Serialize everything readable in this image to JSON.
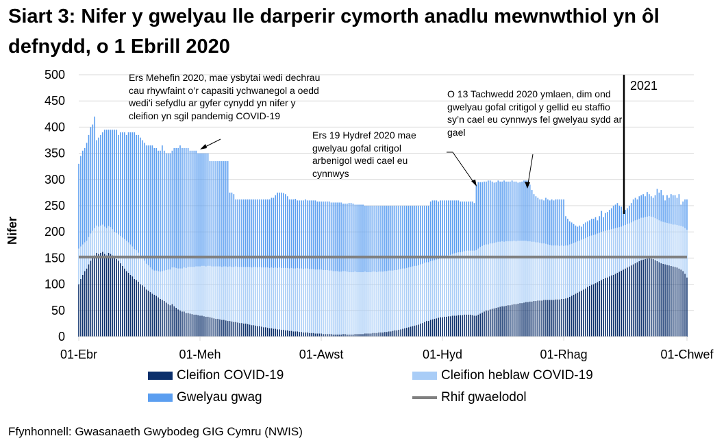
{
  "title": "Siart 3: Nifer y gwelyau lle darperir cymorth anadlu mewnwthiol yn ôl defnydd, o 1 Ebrill 2020",
  "source": "Ffynhonnell: Gwasanaeth Gwybodeg GIG Cymru (NWIS)",
  "chart_data": {
    "type": "bar",
    "stacked": true,
    "title": "Siart 3: Nifer y gwelyau lle darperir cymorth anadlu mewnwthiol yn ôl defnydd, o 1 Ebrill 2020",
    "xlabel": "",
    "ylabel": "Nifer",
    "ylim": [
      0,
      500
    ],
    "yticks": [
      0,
      50,
      100,
      150,
      200,
      250,
      300,
      350,
      400,
      450,
      500
    ],
    "xticks": [
      "01-Ebr",
      "01-Meh",
      "01-Awst",
      "01-Hyd",
      "01-Rhag",
      "01-Chwef"
    ],
    "grid": true,
    "legend": "bottom",
    "colors": {
      "covid": "#0b2f6b",
      "non_covid": "#a9cdf7",
      "empty": "#5b9ef0",
      "baseline": "#808080"
    },
    "series": [
      {
        "name": "Cleifion COVID-19",
        "values": [
          100,
          110,
          118,
          125,
          130,
          138,
          145,
          150,
          155,
          160,
          158,
          160,
          162,
          158,
          155,
          160,
          158,
          155,
          150,
          148,
          145,
          140,
          135,
          130,
          125,
          122,
          118,
          115,
          110,
          108,
          105,
          100,
          98,
          95,
          90,
          88,
          85,
          82,
          80,
          78,
          75,
          72,
          70,
          68,
          65,
          62,
          60,
          62,
          58,
          55,
          52,
          50,
          48,
          48,
          45,
          45,
          44,
          43,
          42,
          42,
          41,
          40,
          40,
          39,
          38,
          38,
          37,
          36,
          35,
          34,
          34,
          33,
          32,
          32,
          31,
          30,
          30,
          29,
          28,
          28,
          27,
          26,
          26,
          25,
          25,
          24,
          23,
          22,
          22,
          21,
          20,
          20,
          19,
          18,
          18,
          17,
          16,
          16,
          15,
          15,
          14,
          14,
          13,
          13,
          12,
          12,
          11,
          11,
          10,
          10,
          10,
          9,
          9,
          8,
          8,
          8,
          7,
          7,
          7,
          6,
          6,
          6,
          6,
          5,
          5,
          5,
          5,
          5,
          4,
          4,
          4,
          4,
          4,
          5,
          5,
          4,
          4,
          4,
          4,
          5,
          5,
          5,
          5,
          5,
          6,
          6,
          6,
          6,
          7,
          7,
          7,
          8,
          8,
          8,
          9,
          9,
          10,
          10,
          11,
          12,
          12,
          13,
          14,
          15,
          16,
          17,
          18,
          19,
          20,
          21,
          22,
          23,
          25,
          26,
          28,
          30,
          30,
          32,
          33,
          34,
          35,
          36,
          37,
          37,
          38,
          38,
          39,
          39,
          40,
          40,
          40,
          41,
          41,
          41,
          42,
          42,
          42,
          42,
          41,
          40,
          40,
          42,
          44,
          46,
          48,
          50,
          50,
          52,
          53,
          54,
          55,
          56,
          57,
          58,
          58,
          59,
          60,
          60,
          61,
          62,
          62,
          63,
          64,
          64,
          65,
          66,
          66,
          67,
          67,
          68,
          68,
          69,
          69,
          69,
          70,
          70,
          70,
          70,
          70,
          70,
          71,
          71,
          71,
          72,
          72,
          73,
          74,
          76,
          78,
          80,
          82,
          84,
          86,
          88,
          90,
          92,
          95,
          97,
          99,
          100,
          102,
          104,
          106,
          108,
          110,
          112,
          113,
          115,
          117,
          118,
          120,
          122,
          124,
          126,
          128,
          130,
          132,
          134,
          136,
          138,
          140,
          142,
          144,
          146,
          147,
          148,
          149,
          150,
          149,
          148,
          146,
          144,
          142,
          140,
          139,
          138,
          137,
          136,
          135,
          134,
          133,
          132,
          130,
          128,
          125,
          120,
          113
        ]
      },
      {
        "name": "Cleifion heblaw COVID-19",
        "values": [
          68,
          62,
          58,
          55,
          53,
          52,
          52,
          52,
          52,
          52,
          52,
          52,
          52,
          52,
          52,
          51,
          51,
          50,
          50,
          50,
          50,
          52,
          54,
          56,
          58,
          58,
          58,
          57,
          57,
          57,
          55,
          54,
          52,
          50,
          49,
          48,
          47,
          46,
          46,
          48,
          50,
          52,
          55,
          58,
          62,
          66,
          68,
          70,
          74,
          76,
          78,
          80,
          82,
          84,
          86,
          88,
          89,
          90,
          91,
          92,
          93,
          94,
          95,
          96,
          96,
          97,
          98,
          98,
          99,
          100,
          100,
          101,
          101,
          102,
          103,
          103,
          104,
          104,
          105,
          106,
          106,
          107,
          107,
          108,
          108,
          109,
          110,
          110,
          111,
          112,
          112,
          113,
          113,
          114,
          114,
          115,
          115,
          116,
          116,
          117,
          117,
          118,
          118,
          118,
          119,
          119,
          119,
          120,
          120,
          120,
          121,
          121,
          121,
          121,
          122,
          122,
          122,
          122,
          122,
          122,
          122,
          122,
          122,
          122,
          122,
          122,
          121,
          121,
          121,
          121,
          121,
          120,
          120,
          120,
          120,
          120,
          119,
          119,
          119,
          119,
          118,
          118,
          118,
          118,
          118,
          117,
          117,
          117,
          117,
          117,
          116,
          116,
          116,
          116,
          116,
          116,
          116,
          116,
          115,
          115,
          115,
          115,
          115,
          115,
          114,
          114,
          114,
          114,
          114,
          114,
          113,
          113,
          113,
          113,
          113,
          112,
          112,
          112,
          112,
          112,
          112,
          112,
          112,
          113,
          114,
          115,
          116,
          117,
          118,
          119,
          120,
          120,
          120,
          121,
          121,
          122,
          122,
          122,
          123,
          124,
          125,
          126,
          127,
          127,
          127,
          126,
          126,
          126,
          125,
          125,
          125,
          125,
          124,
          124,
          123,
          123,
          122,
          122,
          121,
          121,
          120,
          120,
          119,
          119,
          118,
          117,
          116,
          115,
          114,
          113,
          112,
          111,
          110,
          109,
          108,
          107,
          106,
          105,
          104,
          104,
          103,
          103,
          102,
          102,
          101,
          101,
          100,
          100,
          99,
          99,
          98,
          98,
          97,
          97,
          96,
          96,
          95,
          95,
          94,
          94,
          93,
          93,
          92,
          92,
          91,
          90,
          90,
          89,
          88,
          88,
          87,
          86,
          85,
          84,
          84,
          83,
          83,
          82,
          82,
          82,
          82,
          81,
          81,
          81,
          80,
          80,
          80,
          80,
          80,
          80,
          80,
          80,
          80,
          80,
          80,
          80,
          80,
          80,
          80,
          80,
          81,
          81,
          82,
          83,
          85,
          87,
          91
        ]
      },
      {
        "name": "Gwelyau gwag",
        "values": [
          162,
          173,
          179,
          180,
          187,
          195,
          203,
          203,
          213,
          163,
          170,
          173,
          176,
          185,
          188,
          184,
          186,
          190,
          195,
          197,
          190,
          198,
          201,
          204,
          202,
          210,
          214,
          218,
          223,
          220,
          225,
          226,
          225,
          225,
          226,
          229,
          233,
          237,
          234,
          234,
          230,
          231,
          240,
          229,
          223,
          222,
          222,
          223,
          228,
          229,
          230,
          235,
          230,
          228,
          229,
          227,
          222,
          222,
          222,
          221,
          216,
          216,
          215,
          215,
          216,
          215,
          200,
          201,
          201,
          201,
          201,
          201,
          202,
          201,
          201,
          202,
          141,
          142,
          139,
          128,
          129,
          129,
          129,
          129,
          129,
          129,
          129,
          130,
          129,
          129,
          130,
          129,
          130,
          130,
          130,
          130,
          131,
          133,
          134,
          138,
          144,
          143,
          144,
          143,
          141,
          137,
          132,
          131,
          132,
          133,
          129,
          130,
          130,
          131,
          132,
          130,
          131,
          131,
          131,
          132,
          130,
          130,
          130,
          131,
          131,
          131,
          132,
          130,
          131,
          131,
          131,
          132,
          132,
          129,
          129,
          130,
          132,
          132,
          131,
          128,
          129,
          129,
          129,
          129,
          126,
          127,
          127,
          127,
          126,
          126,
          127,
          126,
          126,
          126,
          125,
          125,
          124,
          124,
          124,
          123,
          123,
          122,
          121,
          120,
          120,
          119,
          118,
          117,
          116,
          115,
          115,
          114,
          112,
          111,
          109,
          108,
          108,
          114,
          115,
          114,
          113,
          110,
          111,
          110,
          108,
          107,
          105,
          104,
          102,
          101,
          100,
          99,
          97,
          96,
          95,
          94,
          94,
          94,
          94,
          91,
          125,
          127,
          124,
          122,
          121,
          120,
          122,
          120,
          118,
          115,
          115,
          117,
          115,
          114,
          117,
          114,
          114,
          114,
          116,
          113,
          114,
          111,
          112,
          113,
          115,
          115,
          116,
          108,
          99,
          91,
          88,
          85,
          83,
          84,
          82,
          88,
          86,
          85,
          88,
          86,
          88,
          88,
          89,
          88,
          89,
          56,
          51,
          44,
          41,
          36,
          32,
          28,
          29,
          25,
          29,
          30,
          30,
          30,
          32,
          31,
          33,
          25,
          32,
          40,
          27,
          34,
          35,
          38,
          40,
          44,
          45,
          47,
          41,
          38,
          28,
          29,
          30,
          34,
          37,
          42,
          43,
          39,
          43,
          43,
          45,
          40,
          47,
          42,
          39,
          37,
          44,
          58,
          53,
          60,
          51,
          42,
          53,
          49,
          57,
          56,
          56,
          52,
          60,
          41,
          48,
          55,
          58
        ]
      },
      {
        "name": "Rhif gwaelodol",
        "type": "line",
        "value": 152
      }
    ],
    "annotations": [
      "Ers Mehefin 2020, mae ysbytai wedi dechrau cau rhywfaint o’r capasiti ychwanegol a oedd wedi’i sefydlu ar gyfer cynydd yn nifer y cleifion yn sgil pandemig COVID-19",
      "Ers 19 Hydref 2020 mae gwelyau gofal critigol arbenigol wedi cael eu cynnwys",
      "O 13 Tachwedd 2020 ymlaen, dim ond gwelyau gofal critigol y gellid eu staffio sy’n cael eu cynnwys fel gwelyau sydd ar gael",
      "2021"
    ]
  }
}
